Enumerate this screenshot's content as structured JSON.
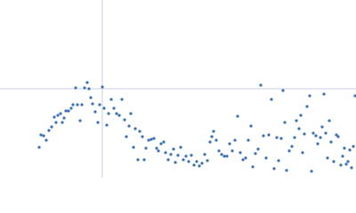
{
  "chart_data": {
    "type": "scatter",
    "color": "#3b6fb6",
    "grid_color": "#c9d3e3",
    "xlim": [
      -115,
      285
    ],
    "ylim": [
      -100,
      100
    ],
    "xticks": [
      0
    ],
    "yticks": [
      0
    ],
    "grid": true,
    "x": [
      -71,
      -69,
      -66,
      -63,
      -60,
      -57,
      -54,
      -52,
      -50,
      -47,
      -45,
      -43,
      -41,
      -38,
      -35,
      -33,
      -30,
      -28,
      -25,
      -23,
      -20,
      -17,
      -15,
      -13,
      -11,
      -8,
      -5,
      -3,
      0,
      2,
      5,
      7,
      10,
      13,
      16,
      19,
      22,
      25,
      27,
      30,
      32,
      35,
      37,
      40,
      42,
      45,
      47,
      49,
      52,
      55,
      58,
      61,
      63,
      66,
      69,
      71,
      74,
      77,
      80,
      82,
      85,
      88,
      91,
      94,
      97,
      100,
      103,
      106,
      109,
      112,
      115,
      118,
      121,
      123,
      125,
      128,
      131,
      134,
      137,
      140,
      143,
      146,
      149,
      152,
      155,
      158,
      161,
      164,
      167,
      169,
      172,
      175,
      178,
      181,
      184,
      187,
      190,
      193,
      196,
      198,
      201,
      203,
      205,
      207,
      210,
      213,
      216,
      218,
      221,
      223,
      225,
      227,
      230,
      233,
      235,
      237,
      240,
      242,
      245,
      247,
      249,
      251,
      253,
      255,
      257,
      260,
      263,
      265,
      268,
      270,
      272,
      274,
      276,
      278,
      280,
      282,
      284
    ],
    "y": [
      -66,
      -52,
      -53,
      -58,
      -47,
      -43,
      -32,
      -38,
      -30,
      -28,
      -38,
      -33,
      -25,
      -25,
      -22,
      -18,
      1,
      -18,
      -36,
      -18,
      1,
      7,
      0,
      -10,
      -17,
      -26,
      -38,
      -18,
      2,
      -22,
      -41,
      -28,
      -12,
      -22,
      -28,
      -30,
      -12,
      -35,
      -54,
      -42,
      -28,
      -66,
      -45,
      -80,
      -48,
      -54,
      -80,
      -67,
      -58,
      -57,
      -56,
      -67,
      -70,
      -62,
      -60,
      -72,
      -80,
      -74,
      -68,
      -83,
      -75,
      -66,
      -80,
      -76,
      -82,
      -75,
      -86,
      -82,
      -87,
      -84,
      -74,
      -81,
      -60,
      -54,
      -48,
      -58,
      -70,
      -74,
      -76,
      -76,
      -62,
      -70,
      -58,
      -31,
      -72,
      -80,
      -78,
      -58,
      -42,
      -88,
      -73,
      -68,
      4,
      -53,
      -78,
      -52,
      -12,
      -90,
      -55,
      -81,
      -56,
      -2,
      -38,
      -92,
      -70,
      -65,
      -55,
      -36,
      -45,
      -30,
      -72,
      -51,
      -20,
      -8,
      -93,
      -50,
      -53,
      -62,
      -55,
      -43,
      -6,
      -50,
      -78,
      -36,
      -60,
      -82,
      -52,
      -54,
      -86,
      -76,
      -67,
      -85,
      -82,
      -69,
      -89,
      -65,
      -8
    ]
  }
}
